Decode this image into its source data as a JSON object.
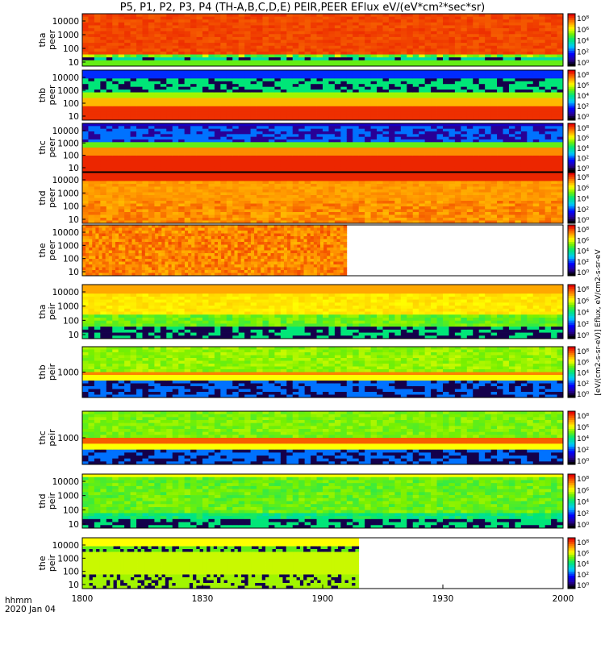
{
  "chart_data": {
    "type": "heatmap",
    "title": "P5, P1, P2, P3, P4 (TH-A,B,C,D,E) PEIR,PEER EFlux eV/(eV*cm²*sec*sr)",
    "x_label_line1": "hhmm",
    "x_label_line2": "2020 Jan 04",
    "x_range": [
      "1800",
      "2000"
    ],
    "x_ticks": [
      "1800",
      "1830",
      "1900",
      "1930",
      "2000"
    ],
    "colorbar_label": "[eV/(cm2-s-sr-eV)] Eflux, eV/cm2-s-sr-eV",
    "colorbar_ticks": [
      "10⁸",
      "10⁶",
      "10⁴",
      "10²",
      "10⁰"
    ],
    "panels": [
      {
        "probe": "tha",
        "species": "peer",
        "yticks": [
          "10000",
          "1000",
          "100",
          "10"
        ],
        "coverage_end": "2000",
        "pattern": "peer_a"
      },
      {
        "probe": "thb",
        "species": "peer",
        "yticks": [
          "10000",
          "1000",
          "100",
          "10"
        ],
        "coverage_end": "2000",
        "pattern": "peer_b"
      },
      {
        "probe": "thc",
        "species": "peer",
        "yticks": [
          "10000",
          "1000",
          "100",
          "10"
        ],
        "coverage_end": "2000",
        "pattern": "peer_c"
      },
      {
        "probe": "thd",
        "species": "peer",
        "yticks": [
          "10000",
          "1000",
          "100",
          "10"
        ],
        "coverage_end": "2000",
        "pattern": "peer_d"
      },
      {
        "probe": "the",
        "species": "peer",
        "yticks": [
          "10000",
          "1000",
          "100",
          "10"
        ],
        "coverage_end": "1906",
        "pattern": "peer_e"
      },
      {
        "probe": "tha",
        "species": "peir",
        "yticks": [
          "10000",
          "1000",
          "100",
          "10"
        ],
        "coverage_end": "2000",
        "pattern": "peir_a"
      },
      {
        "probe": "thb",
        "species": "peir",
        "yticks": [
          "1000"
        ],
        "coverage_end": "2000",
        "pattern": "peir_b"
      },
      {
        "probe": "thc",
        "species": "peir",
        "yticks": [
          "1000"
        ],
        "coverage_end": "2000",
        "pattern": "peir_c"
      },
      {
        "probe": "thd",
        "species": "peir",
        "yticks": [
          "10000",
          "1000",
          "100",
          "10"
        ],
        "coverage_end": "2000",
        "pattern": "peir_d"
      },
      {
        "probe": "the",
        "species": "peir",
        "yticks": [
          "10000",
          "1000",
          "100",
          "10"
        ],
        "coverage_end": "1909",
        "pattern": "peir_e"
      }
    ]
  }
}
